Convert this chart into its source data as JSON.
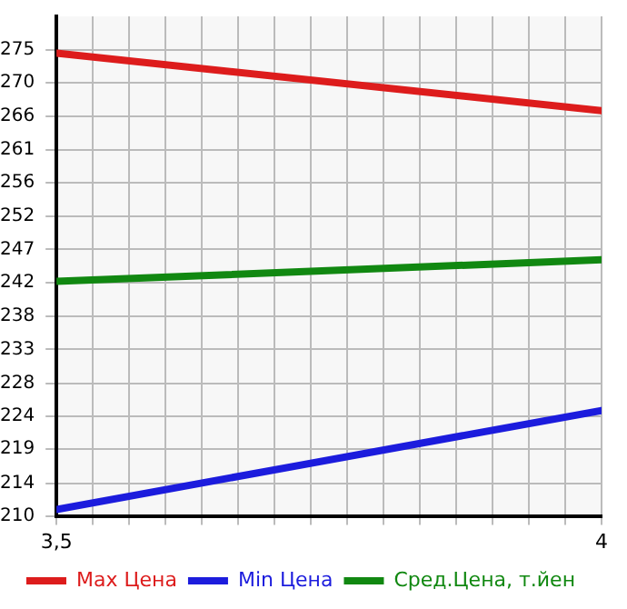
{
  "chart_data": {
    "type": "line",
    "x": [
      3.5,
      4
    ],
    "series": [
      {
        "name": "Max Цена",
        "color": "#dd1c1c",
        "values": [
          274.5,
          266.5
        ]
      },
      {
        "name": "Min Цена",
        "color": "#1c1cdd",
        "values": [
          210.9,
          224.7
        ]
      },
      {
        "name": "Сред.Цена, т.йен",
        "color": "#118811",
        "values": [
          242.7,
          245.7
        ]
      }
    ],
    "xlim": [
      3.5,
      4
    ],
    "xticks": [
      {
        "value": 3.5,
        "label": "3,5"
      },
      {
        "value": 3.5333,
        "label": null
      },
      {
        "value": 3.5667,
        "label": null
      },
      {
        "value": 3.6,
        "label": null
      },
      {
        "value": 3.6333,
        "label": null
      },
      {
        "value": 3.6667,
        "label": null
      },
      {
        "value": 3.7,
        "label": null
      },
      {
        "value": 3.7333,
        "label": null
      },
      {
        "value": 3.7667,
        "label": null
      },
      {
        "value": 3.8,
        "label": null
      },
      {
        "value": 3.8333,
        "label": null
      },
      {
        "value": 3.8667,
        "label": null
      },
      {
        "value": 3.9,
        "label": null
      },
      {
        "value": 3.9333,
        "label": null
      },
      {
        "value": 3.9667,
        "label": null
      },
      4
    ],
    "ylim": [
      210,
      279.64
    ],
    "yticks": [
      210,
      {
        "value": 214.5,
        "label": "214"
      },
      {
        "value": 219.29,
        "label": "219"
      },
      {
        "value": 223.93,
        "label": "224"
      },
      {
        "value": 228.5,
        "label": "228"
      },
      {
        "value": 233.21,
        "label": "233"
      },
      {
        "value": 237.86,
        "label": "238"
      },
      {
        "value": 242.5,
        "label": "242"
      },
      {
        "value": 247.14,
        "label": "247"
      },
      {
        "value": 251.79,
        "label": "252"
      },
      {
        "value": 256.43,
        "label": "256"
      },
      {
        "value": 261.07,
        "label": "261"
      },
      {
        "value": 265.71,
        "label": "266"
      },
      {
        "value": 270.36,
        "label": "270"
      },
      275
    ],
    "grid": true,
    "legend": "bottom",
    "marker": "none",
    "line_style": "solid"
  }
}
